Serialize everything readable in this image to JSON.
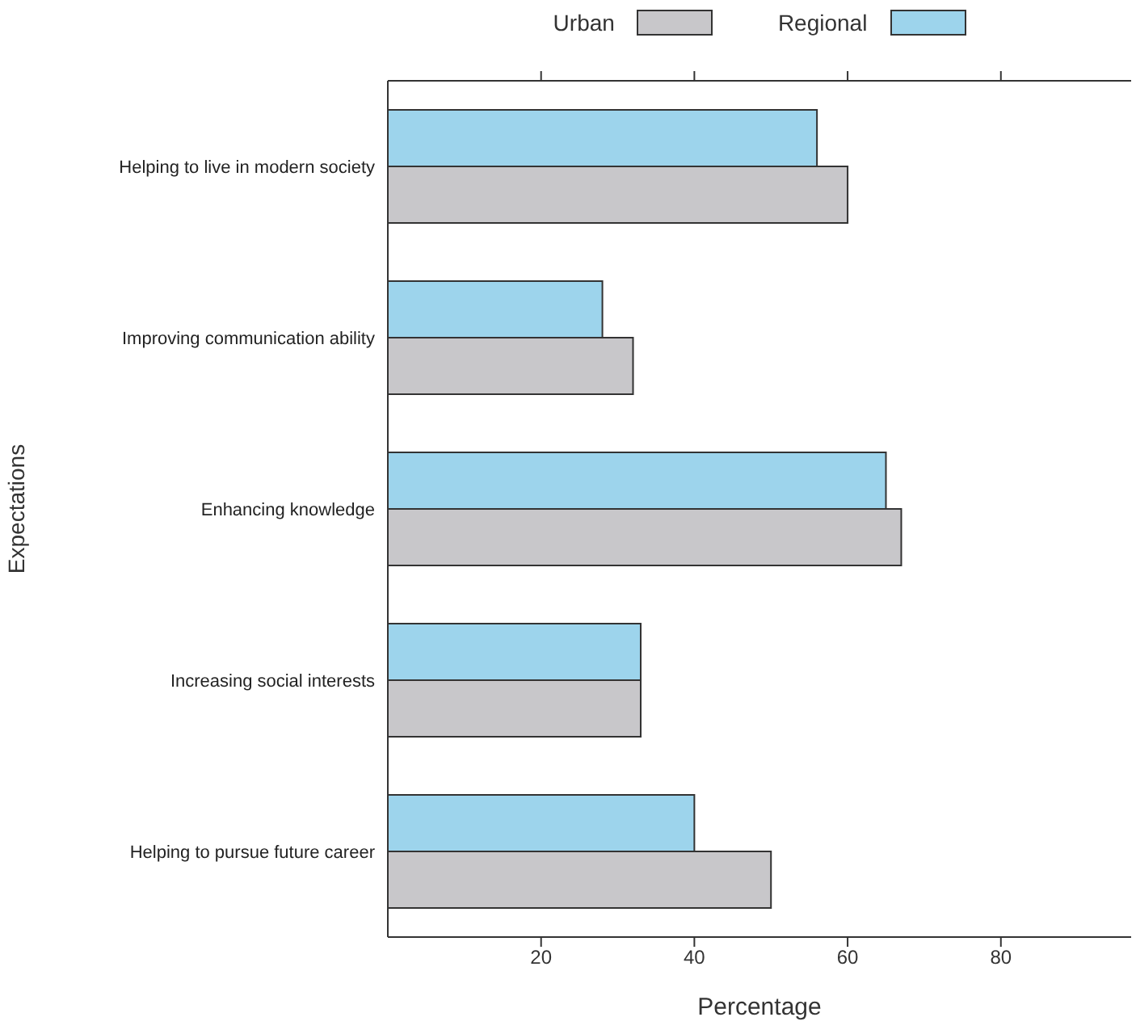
{
  "chart_data": {
    "type": "bar",
    "orientation": "horizontal",
    "xlabel": "Percentage",
    "ylabel": "Expectations",
    "categories": [
      "Helping to live in modern society",
      "Improving communication ability",
      "Enhancing knowledge",
      "Increasing social interests",
      "Helping to pursue future career"
    ],
    "series": [
      {
        "name": "Urban",
        "color": "#c8c7ca",
        "values": [
          60,
          32,
          67,
          33,
          50
        ]
      },
      {
        "name": "Regional",
        "color": "#9dd4ec",
        "values": [
          56,
          28,
          65,
          33,
          40
        ]
      }
    ],
    "xlim": [
      0,
      97
    ],
    "xticks": [
      20,
      40,
      60,
      80
    ],
    "legend": "top"
  }
}
